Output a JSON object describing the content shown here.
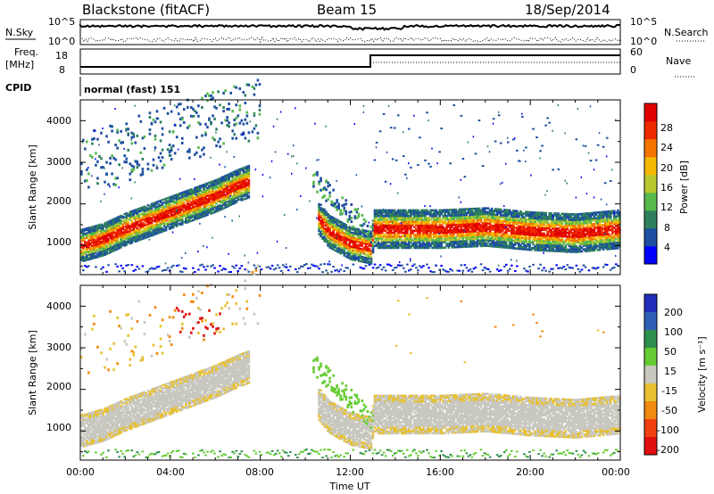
{
  "header": {
    "title": "Blackstone (fitACF)",
    "beam": "Beam 15",
    "date": "18/Sep/2014"
  },
  "top_panels": {
    "nsky_label": "N.Sky",
    "nsky_ticks": [
      "10^5",
      "10^0"
    ],
    "nsearch_label": "N.Search",
    "nsearch_ticks": [
      "10^5",
      "10^0"
    ],
    "freq_label_1": "Freq.",
    "freq_label_2": "[MHz]",
    "freq_ticks": [
      "18",
      "8"
    ],
    "nave_label": "Nave",
    "nave_ticks": [
      "60",
      "0"
    ],
    "cpid_label": "CPID",
    "cpid_value": "normal (fast) 151"
  },
  "colors": {
    "power_scale": [
      "#0000ff",
      "#1e4fa0",
      "#2e7f5e",
      "#55b94c",
      "#b7c92e",
      "#f4b800",
      "#f47400",
      "#f02a00",
      "#e00000"
    ],
    "velocity_scale": [
      "#2130b8",
      "#2f5fb6",
      "#2f8f4f",
      "#66cc33",
      "#c8c8c0",
      "#e8c030",
      "#f08a10",
      "#f04010",
      "#e01010"
    ],
    "gray": "#c8c8c0"
  },
  "chart_data": [
    {
      "type": "heatmap",
      "name": "power",
      "ylabel": "Slant Range [km]",
      "yticks": [
        "1000",
        "2000",
        "3000",
        "4000"
      ],
      "ylim": [
        300,
        4500
      ],
      "xlim": [
        0,
        24
      ],
      "colorbar_label": "Power [dB]",
      "colorbar_ticks": [
        "4",
        "8",
        "12",
        "16",
        "20",
        "24",
        "28"
      ],
      "colorbar_range": [
        0,
        32
      ],
      "main_echo_band_km": [
        [
          0,
          1000
        ],
        [
          1,
          1150
        ],
        [
          2,
          1400
        ],
        [
          3,
          1600
        ],
        [
          4,
          1800
        ],
        [
          5,
          2000
        ],
        [
          6,
          2200
        ],
        [
          7,
          2450
        ],
        [
          7.5,
          2550
        ],
        [
          10.5,
          1700
        ],
        [
          11,
          1350
        ],
        [
          12,
          1050
        ],
        [
          12.9,
          950
        ],
        [
          13,
          1400
        ],
        [
          16,
          1400
        ],
        [
          18,
          1450
        ],
        [
          20,
          1350
        ],
        [
          22,
          1300
        ],
        [
          24,
          1400
        ]
      ]
    },
    {
      "type": "heatmap",
      "name": "velocity",
      "ylabel": "Slant Range [km]",
      "yticks": [
        "1000",
        "2000",
        "3000",
        "4000"
      ],
      "ylim": [
        300,
        4500
      ],
      "xlim": [
        0,
        24
      ],
      "xlabel": "Time UT",
      "xticks": [
        "00:00",
        "04:00",
        "08:00",
        "12:00",
        "16:00",
        "20:00",
        "00:00"
      ],
      "colorbar_label": "Velocity [m s⁻¹]",
      "colorbar_ticks": [
        "200",
        "100",
        "50",
        "15",
        "-15",
        "-50",
        "-100",
        "-200"
      ],
      "colorbar_range": [
        -250,
        250
      ]
    }
  ]
}
